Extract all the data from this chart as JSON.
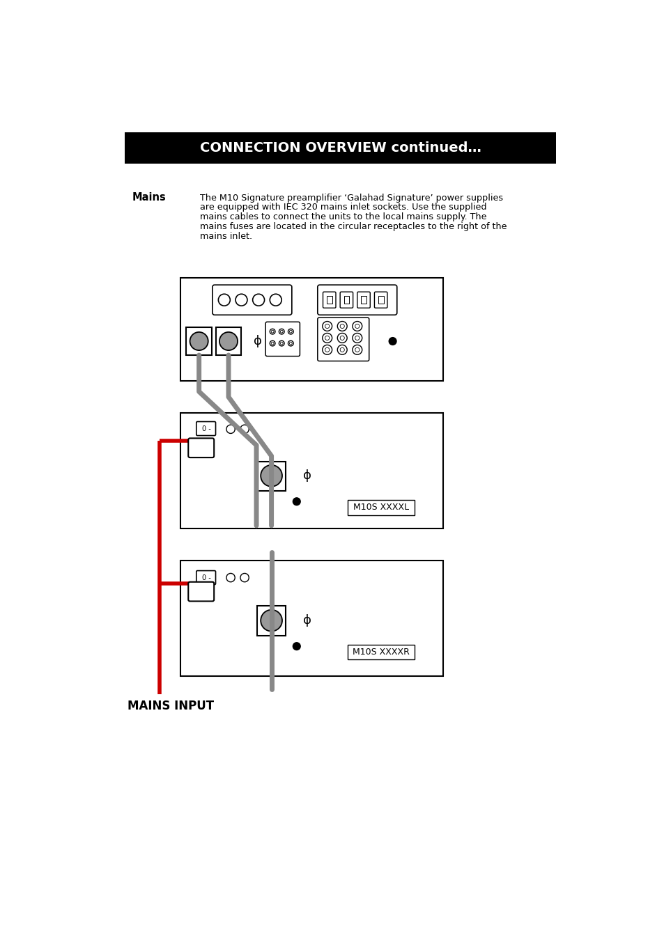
{
  "title": "CONNECTION OVERVIEW continued…",
  "title_bg": "#000000",
  "title_fg": "#ffffff",
  "body_text_line1": "The M10 Signature preamplifier ‘Galahad Signature’ power supplies",
  "body_text_line2": "are equipped with IEC 320 mains inlet sockets. Use the supplied",
  "body_text_line3": "mains cables to connect the units to the local mains supply. The",
  "body_text_line4": "mains fuses are located in the circular receptacles to the right of the",
  "body_text_line5": "mains inlet.",
  "label_mains": "Mains",
  "label_mains_input": "MAINS INPUT",
  "label_m10s_l": "M10S XXXXL",
  "label_m10s_r": "M10S XXXXR",
  "page_bg": "#ffffff",
  "box_color": "#000000",
  "gray_cable": "#888888",
  "red_cable": "#cc0000"
}
